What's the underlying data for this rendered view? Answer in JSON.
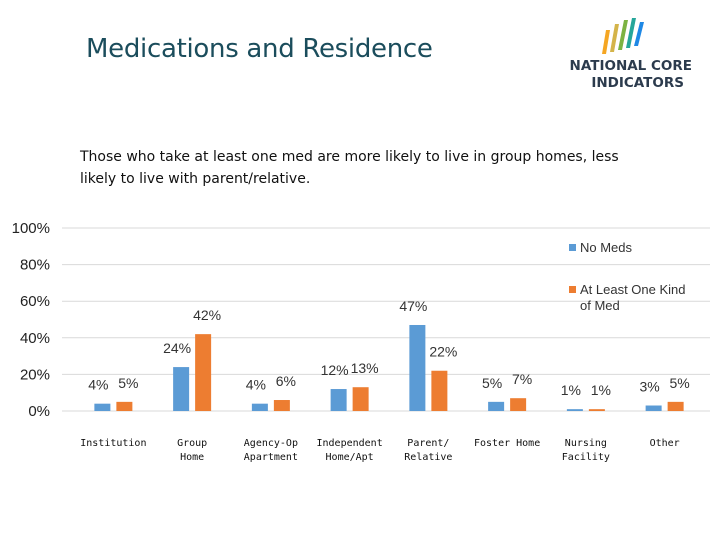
{
  "slide": {
    "title": "Medications and Residence",
    "subtitle": "Those who take at least one med are more likely to live in group homes, less likely to live with parent/relative.",
    "logo_line1": "NATIONAL CORE",
    "logo_line2": "INDICATORS"
  },
  "colors": {
    "no_meds": "#5b9bd5",
    "at_least_one": "#ed7d31",
    "title": "#1b4d5c",
    "logo_text": "#2c3b4d",
    "gridline": "#d9d9d9"
  },
  "chart_data": {
    "type": "bar",
    "title": "",
    "xlabel": "",
    "ylabel": "",
    "ylim": [
      0,
      100
    ],
    "yticks": [
      "0%",
      "20%",
      "40%",
      "60%",
      "80%",
      "100%"
    ],
    "categories": [
      [
        "Institution"
      ],
      [
        "Group",
        "Home"
      ],
      [
        "Agency-Op",
        "Apartment"
      ],
      [
        "Independent",
        "Home/Apt"
      ],
      [
        "Parent/",
        "Relative"
      ],
      [
        "Foster Home"
      ],
      [
        "Nursing",
        "Facility"
      ],
      [
        "Other"
      ]
    ],
    "series": [
      {
        "name": "No Meds",
        "values": [
          4,
          24,
          4,
          12,
          47,
          5,
          1,
          3
        ],
        "labels": [
          "4%",
          "24%",
          "4%",
          "12%",
          "47%",
          "5%",
          "1%",
          "3%"
        ]
      },
      {
        "name": "At Least One Kind of Med",
        "legend_lines": [
          "At Least One Kind",
          "of Med"
        ],
        "values": [
          5,
          42,
          6,
          13,
          22,
          7,
          1,
          5
        ],
        "labels": [
          "5%",
          "42%",
          "6%",
          "13%",
          "22%",
          "7%",
          "1%",
          "5%"
        ]
      }
    ],
    "legend_position": "top-right",
    "grid": true
  }
}
